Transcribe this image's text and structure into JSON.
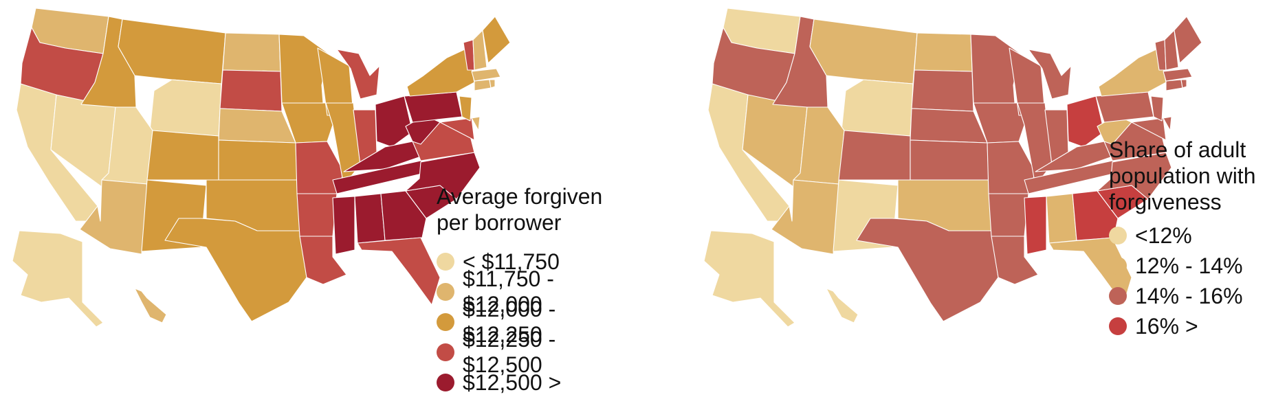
{
  "colors": {
    "c1": "#EFD8A0",
    "c2": "#DFB56E",
    "c3": "#D39A3C",
    "c4": "#C24C46",
    "c5": "#9B1B2E",
    "r3": "#BE6358",
    "r4": "#C63F3F"
  },
  "left_map": {
    "legend_title": "Average forgiven per borrower",
    "legend": [
      {
        "label": "< $11,750",
        "color": "#EFD8A0"
      },
      {
        "label": "$11,750 - $12,000",
        "color": "#DFB56E"
      },
      {
        "label": "$12,000 - $12,250",
        "color": "#D39A3C"
      },
      {
        "label": "$12,250 - $12,500",
        "color": "#C24C46"
      },
      {
        "label": "$12,500 >",
        "color": "#9B1B2E"
      }
    ]
  },
  "right_map": {
    "legend_title": "Share of adult population with forgiveness",
    "legend": [
      {
        "label": "<12%",
        "color": "#EFD8A0"
      },
      {
        "label": "12% - 14%",
        "color": "#DFB56E"
      },
      {
        "label": "14% - 16%",
        "color": "#BE6358"
      },
      {
        "label": "16% >",
        "color": "#C63F3F"
      }
    ]
  }
}
